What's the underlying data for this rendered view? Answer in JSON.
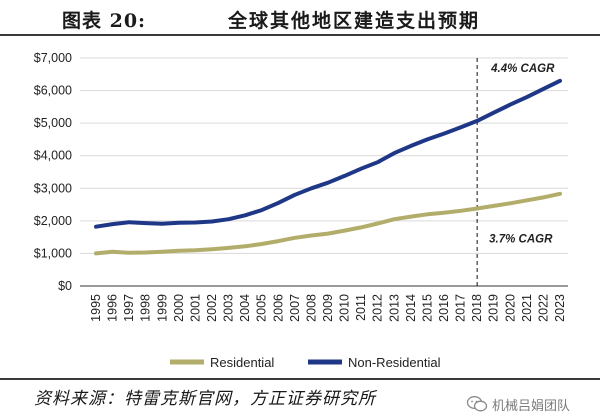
{
  "header": {
    "figure_label": "图表 20:",
    "title": "全球其他地区建造支出预期"
  },
  "footer": {
    "source": "资料来源：特雷克斯官网，方正证券研究所",
    "watermark": "机械吕娟团队"
  },
  "chart_data": {
    "type": "line",
    "x": [
      "1995",
      "1996",
      "1997",
      "1998",
      "1999",
      "2000",
      "2001",
      "2002",
      "2003",
      "2004",
      "2005",
      "2006",
      "2007",
      "2008",
      "2009",
      "2010",
      "2011",
      "2012",
      "2013",
      "2014",
      "2015",
      "2016",
      "2017",
      "2018",
      "2019",
      "2020",
      "2021",
      "2022",
      "2023"
    ],
    "series": [
      {
        "name": "Residential",
        "color": "#b3ad6b",
        "values": [
          1000,
          1050,
          1020,
          1030,
          1050,
          1080,
          1100,
          1130,
          1170,
          1220,
          1290,
          1380,
          1480,
          1550,
          1610,
          1700,
          1800,
          1920,
          2050,
          2130,
          2200,
          2250,
          2310,
          2380,
          2460,
          2540,
          2630,
          2720,
          2830
        ]
      },
      {
        "name": "Non-Residential",
        "color": "#1f3787",
        "values": [
          1820,
          1900,
          1960,
          1930,
          1910,
          1940,
          1950,
          1980,
          2050,
          2170,
          2330,
          2550,
          2800,
          3000,
          3170,
          3380,
          3600,
          3800,
          4080,
          4300,
          4500,
          4680,
          4870,
          5070,
          5320,
          5570,
          5800,
          6050,
          6300
        ]
      }
    ],
    "ylim": [
      0,
      7000
    ],
    "y_ticks": [
      0,
      1000,
      2000,
      3000,
      4000,
      5000,
      6000,
      7000
    ],
    "y_tick_labels": [
      "$0",
      "$1,000",
      "$2,000",
      "$3,000",
      "$4,000",
      "$5,000",
      "$6,000",
      "$7,000"
    ],
    "divider_x": "2018",
    "annotations": [
      {
        "text": "4.4% CAGR",
        "series": "Non-Residential"
      },
      {
        "text": "3.7% CAGR",
        "series": "Residential"
      }
    ],
    "gridlines": "horizontal",
    "legend_position": "bottom",
    "xlabel": "",
    "ylabel": ""
  }
}
